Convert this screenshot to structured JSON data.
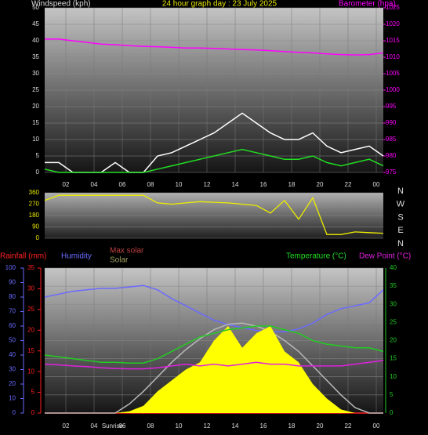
{
  "chart_data": [
    {
      "type": "line",
      "title": "24 hour graph day : 23 July 2025",
      "y_label": "Windspeed (kph)",
      "y2_label": "Barometer (hpa)",
      "x": [
        0.5,
        1.5,
        2.5,
        3.5,
        4.5,
        5.5,
        6.5,
        7.5,
        8.5,
        9.5,
        10.5,
        11.5,
        12.5,
        13.5,
        14.5,
        15.5,
        16.5,
        17.5,
        18.5,
        19.5,
        20.5,
        21.5,
        22.5,
        23.5,
        24.5
      ],
      "xlim": [
        0.5,
        24.5
      ],
      "xticks": [
        {
          "value": 2,
          "label": "02"
        },
        {
          "value": 4,
          "label": "04"
        },
        {
          "value": 6,
          "label": "06"
        },
        {
          "value": 8,
          "label": "08"
        },
        10,
        12,
        14,
        16,
        18,
        20,
        22,
        {
          "value": 24,
          "label": "00"
        }
      ],
      "ylim": [
        0,
        50
      ],
      "yticks": [
        0,
        5,
        10,
        15,
        20,
        25,
        30,
        35,
        40,
        45,
        50
      ],
      "y2lim": [
        975,
        1025
      ],
      "y2ticks": [
        975,
        980,
        985,
        990,
        995,
        1000,
        1005,
        1010,
        1015,
        1020,
        1025
      ],
      "grid": true,
      "series": [
        {
          "color": "#ffffff",
          "values": [
            3,
            3,
            0,
            0,
            0,
            3,
            0,
            0,
            5,
            6,
            8,
            10,
            12,
            15,
            18,
            15,
            12,
            10,
            10,
            12,
            8,
            6,
            7,
            8,
            5
          ]
        },
        {
          "color": "#22dd22",
          "values": [
            1,
            0,
            0,
            0,
            0,
            0,
            0,
            0,
            1,
            2,
            3,
            4,
            5,
            6,
            7,
            6,
            5,
            4,
            4,
            5,
            3,
            2,
            3,
            4,
            2
          ]
        },
        {
          "color": "#ff00ff",
          "axis": "y2",
          "values": [
            1015.5,
            1015.5,
            1015,
            1014.5,
            1014,
            1013.8,
            1013.5,
            1013.3,
            1013.2,
            1013,
            1012.8,
            1012.8,
            1012.7,
            1012.5,
            1012.3,
            1012.2,
            1012,
            1011.7,
            1011.5,
            1011.3,
            1011,
            1010.8,
            1010.7,
            1010.8,
            1011.3
          ]
        }
      ]
    },
    {
      "type": "line",
      "x": [
        0.5,
        1.5,
        2.5,
        3.5,
        4.5,
        5.5,
        6.5,
        7.5,
        8.5,
        9.5,
        10.5,
        11.5,
        12.5,
        13.5,
        14.5,
        15.5,
        16.5,
        17.5,
        18.5,
        19.5,
        20.5,
        21.5,
        22.5,
        23.5,
        24.5
      ],
      "xlim": [
        0.5,
        24.5
      ],
      "ylim": [
        0,
        360
      ],
      "yticks": [
        0,
        90,
        180,
        270,
        360
      ],
      "y2lim": [
        0,
        360
      ],
      "y2ticks": [
        {
          "value": 0,
          "label": "N"
        },
        {
          "value": 90,
          "label": "E"
        },
        {
          "value": 180,
          "label": "S"
        },
        {
          "value": 270,
          "label": "W"
        },
        {
          "value": 360,
          "label": "N"
        }
      ],
      "grid": true,
      "series": [
        {
          "color": "#eeee00",
          "values": [
            300,
            340,
            340,
            340,
            340,
            340,
            340,
            340,
            280,
            270,
            280,
            290,
            285,
            280,
            270,
            260,
            200,
            300,
            150,
            320,
            30,
            30,
            50,
            45,
            40
          ]
        }
      ]
    },
    {
      "type": "line",
      "x": [
        0.5,
        1.5,
        2.5,
        3.5,
        4.5,
        5.5,
        6.5,
        7.5,
        8.5,
        9.5,
        10.5,
        11.5,
        12.5,
        13.5,
        14.5,
        15.5,
        16.5,
        17.5,
        18.5,
        19.5,
        20.5,
        21.5,
        22.5,
        23.5,
        24.5
      ],
      "xlim": [
        0.5,
        24.5
      ],
      "xticks": [
        {
          "value": 2,
          "label": "02"
        },
        {
          "value": 4,
          "label": "04"
        },
        {
          "value": 6,
          "label": "06"
        },
        {
          "value": 8,
          "label": "08"
        },
        10,
        12,
        14,
        16,
        18,
        20,
        22,
        {
          "value": 24,
          "label": "00"
        }
      ],
      "ylim": [
        0,
        100
      ],
      "yticks": [
        0,
        10,
        20,
        30,
        40,
        50,
        60,
        70,
        80,
        90,
        100
      ],
      "y2lim": [
        0,
        40
      ],
      "y2ticks": [
        0,
        5,
        10,
        15,
        20,
        25,
        30,
        35,
        40
      ],
      "y3lim": [
        0,
        35
      ],
      "y3ticks": [
        0,
        5,
        10,
        15,
        20,
        25,
        30,
        35
      ],
      "grid": true,
      "annotation": {
        "text": "Sunrise",
        "x": 5.3
      },
      "series": [
        {
          "name": "Rainfall (mm)",
          "color": "#ff2020",
          "axis": "y3",
          "values": [
            0,
            0,
            0,
            0,
            0,
            0,
            0,
            0,
            0,
            0,
            0,
            0,
            0,
            0,
            0,
            0,
            0,
            0,
            0,
            0,
            0,
            0,
            0,
            0,
            0
          ]
        },
        {
          "name": "Humidity",
          "color": "#6a6aff",
          "values": [
            80,
            82,
            84,
            85,
            86,
            86,
            87,
            88,
            85,
            79,
            74,
            69,
            64,
            61,
            59,
            57,
            56,
            56,
            58,
            62,
            68,
            72,
            74,
            76,
            85
          ]
        },
        {
          "name": "Max solar",
          "color": "#b8b8b8",
          "axis": "y2",
          "values": [
            0,
            0,
            0,
            0,
            0,
            0,
            2.5,
            6,
            10,
            14,
            17.5,
            20.5,
            23,
            24.5,
            24.8,
            24,
            22.5,
            20,
            17,
            13,
            9,
            5,
            1.5,
            0,
            0
          ]
        },
        {
          "name": "Solar",
          "color": "#ffff00",
          "axis": "y2",
          "area": true,
          "values": [
            0,
            0,
            0,
            0,
            0,
            0,
            0.5,
            2,
            6,
            9,
            12,
            14,
            20,
            24,
            18,
            22,
            24,
            17,
            14,
            8,
            4,
            1,
            0,
            0,
            0
          ]
        },
        {
          "name": "Temperature (°C)",
          "color": "#22cc22",
          "axis": "y2",
          "values": [
            16,
            15.5,
            15,
            14.5,
            14,
            14,
            13.8,
            13.8,
            15,
            17,
            19,
            21,
            22,
            23,
            23.5,
            24,
            24,
            23,
            22,
            20,
            19,
            18.5,
            18,
            18,
            17
          ]
        },
        {
          "name": "Dew Point (°C)",
          "color": "#e020e0",
          "axis": "y2",
          "values": [
            13.5,
            13.3,
            13,
            12.8,
            12.5,
            12.3,
            12.2,
            12.2,
            12.5,
            13,
            13.5,
            13,
            13.5,
            13,
            13.5,
            14,
            13.5,
            13.5,
            13,
            13,
            13,
            13,
            13.5,
            14,
            14.5
          ]
        }
      ]
    }
  ]
}
